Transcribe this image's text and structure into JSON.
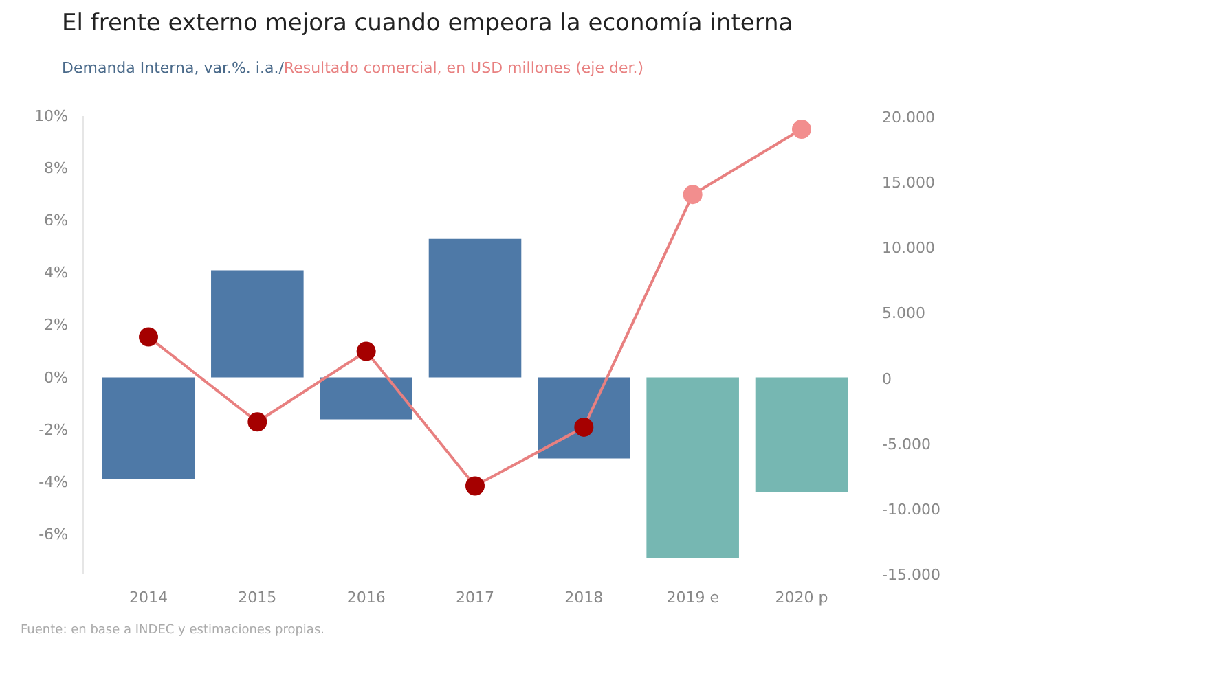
{
  "chart_data": {
    "type": "bar",
    "title": "El frente externo mejora cuando empeora la economía interna",
    "categories": [
      "2014",
      "2015",
      "2016",
      "2017",
      "2018",
      "2019 e",
      "2020 p"
    ],
    "series": [
      {
        "name": "Demanda Interna, var.%. i.a./",
        "color": "#4e79a7",
        "colors": [
          "#4e79a7",
          "#4e79a7",
          "#4e79a7",
          "#4e79a7",
          "#4e79a7",
          "#76b7b2",
          "#76b7b2"
        ],
        "values": [
          -3.9,
          4.1,
          -1.6,
          5.3,
          -3.1,
          -6.9,
          -4.4
        ]
      },
      {
        "name": "Resultado comercial, en USD millones (eje der.)",
        "type": "line",
        "axis": "y2",
        "color": "#e88080",
        "colors": [
          "#a50000",
          "#a50000",
          "#a50000",
          "#a50000",
          "#a50000",
          "#f28e8e",
          "#f28e8e"
        ],
        "values": [
          3100,
          -3400,
          2000,
          -8300,
          -3800,
          14000,
          19000
        ]
      }
    ],
    "ylim": [
      -7.5,
      10
    ],
    "yticks": [
      {
        "value": -6,
        "label": "-6%"
      },
      {
        "value": -4,
        "label": "-4%"
      },
      {
        "value": -2,
        "label": "-2%"
      },
      {
        "value": 0,
        "label": "0%"
      },
      {
        "value": 2,
        "label": "2%"
      },
      {
        "value": 4,
        "label": "4%"
      },
      {
        "value": 6,
        "label": "6%"
      },
      {
        "value": 8,
        "label": "8%"
      },
      {
        "value": 10,
        "label": "10%"
      }
    ],
    "y2lim": [
      -15000,
      20000
    ],
    "y2ticks": [
      {
        "value": -15000,
        "label": "-15.000"
      },
      {
        "value": -10000,
        "label": "-10.000"
      },
      {
        "value": -5000,
        "label": "-5.000"
      },
      0,
      {
        "value": 5000,
        "label": "5.000"
      },
      {
        "value": 10000,
        "label": "10.000"
      },
      {
        "value": 15000,
        "label": "15.000"
      },
      {
        "value": 20000,
        "label": "20.000"
      }
    ],
    "marker": "circle",
    "grid": false,
    "annotations": [
      "Fuente: en base a INDEC y estimaciones propias."
    ]
  }
}
